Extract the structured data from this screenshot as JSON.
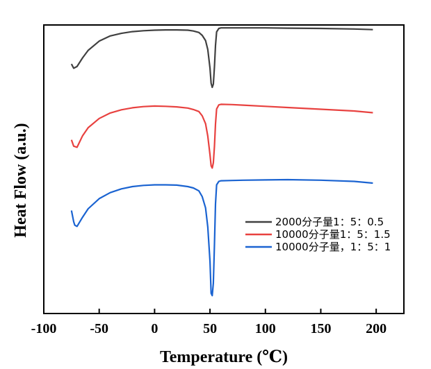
{
  "chart_data": {
    "type": "line",
    "title": "",
    "xlabel": "Temperature (℃)",
    "ylabel": "Heat Flow (a.u.)",
    "xlim": [
      -100,
      225
    ],
    "ylim": [
      0,
      100
    ],
    "xticks": [
      -100,
      -50,
      0,
      50,
      100,
      150,
      200
    ],
    "xtick_labels": [
      "-100",
      "-50",
      "0",
      "50",
      "100",
      "150",
      "200"
    ],
    "yticks_shown": false,
    "grid": false,
    "legend_position": "center-right",
    "series": [
      {
        "name": "2000分子量1：5：0.5",
        "color": "#404040",
        "x": [
          -75,
          -73,
          -70,
          -65,
          -60,
          -50,
          -40,
          -30,
          -20,
          -10,
          0,
          10,
          20,
          30,
          35,
          40,
          43,
          46,
          48,
          50,
          51,
          52,
          53,
          54,
          55,
          56,
          58,
          60,
          70,
          80,
          100,
          120,
          150,
          180,
          197
        ],
        "y": [
          86.5,
          85.0,
          85.6,
          88.6,
          91.2,
          94.4,
          96.2,
          97.1,
          97.7,
          98.0,
          98.2,
          98.3,
          98.3,
          98.2,
          97.9,
          97.4,
          96.4,
          94.6,
          91.5,
          85.0,
          79.8,
          78.4,
          79.5,
          85.6,
          92.9,
          97.6,
          98.8,
          99.0,
          99.0,
          99.0,
          99.0,
          98.9,
          98.8,
          98.6,
          98.4
        ]
      },
      {
        "name": "10000分子量1：5：1.5",
        "color": "#e8413f",
        "x": [
          -75,
          -73,
          -70,
          -65,
          -60,
          -50,
          -40,
          -30,
          -20,
          -10,
          0,
          10,
          20,
          30,
          35,
          40,
          43,
          46,
          48,
          50,
          51,
          52,
          53,
          54,
          55,
          56,
          58,
          60,
          70,
          80,
          100,
          120,
          150,
          180,
          197
        ],
        "y": [
          60.2,
          58.0,
          57.6,
          61.6,
          64.4,
          67.6,
          69.5,
          70.6,
          71.3,
          71.7,
          71.9,
          71.8,
          71.6,
          71.2,
          70.7,
          70.0,
          68.5,
          65.8,
          61.5,
          55.0,
          51.2,
          50.4,
          52.2,
          58.0,
          65.7,
          70.9,
          72.3,
          72.5,
          72.4,
          72.2,
          71.8,
          71.4,
          70.8,
          70.2,
          69.6
        ]
      },
      {
        "name": "10000分子量，1：5：1",
        "color": "#1a63d1",
        "x": [
          -75,
          -73,
          -72,
          -70,
          -65,
          -60,
          -50,
          -40,
          -30,
          -20,
          -10,
          0,
          10,
          20,
          30,
          35,
          40,
          43,
          46,
          48,
          50,
          51,
          52,
          53,
          54,
          55,
          56,
          58,
          60,
          70,
          80,
          100,
          120,
          150,
          180,
          197
        ],
        "y": [
          35.7,
          31.8,
          30.6,
          30.2,
          33.4,
          36.3,
          39.8,
          41.9,
          43.2,
          44.0,
          44.4,
          44.6,
          44.6,
          44.5,
          44.0,
          43.5,
          42.5,
          40.5,
          36.6,
          30.0,
          18.0,
          7.0,
          6.2,
          10.5,
          24.0,
          38.0,
          44.6,
          45.8,
          46.0,
          46.1,
          46.2,
          46.3,
          46.4,
          46.2,
          45.8,
          45.2
        ]
      }
    ]
  }
}
